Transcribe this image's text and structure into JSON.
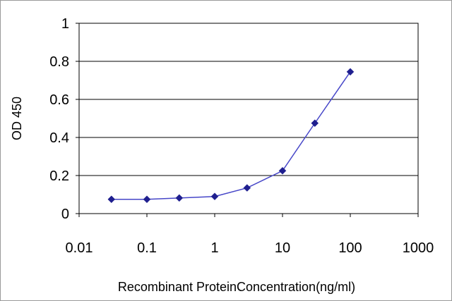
{
  "chart_data": {
    "type": "line",
    "title": "",
    "xlabel": "Recombinant ProteinConcentration(ng/ml)",
    "ylabel": "OD 450",
    "x_scale": "log",
    "xlim": [
      0.01,
      1000
    ],
    "ylim": [
      0,
      1
    ],
    "x_ticks": [
      "0.01",
      "0.1",
      "1",
      "10",
      "100",
      "1000"
    ],
    "y_ticks": [
      "0",
      "0.2",
      "0.4",
      "0.6",
      "0.8",
      "1"
    ],
    "grid": "horizontal",
    "legend": "none",
    "series": [
      {
        "x": [
          0.03,
          0.1,
          0.3,
          1,
          3,
          10,
          30,
          100
        ],
        "y": [
          0.075,
          0.075,
          0.082,
          0.09,
          0.135,
          0.225,
          0.475,
          0.745
        ],
        "color": "#1f1f8f",
        "marker": "diamond"
      }
    ]
  }
}
